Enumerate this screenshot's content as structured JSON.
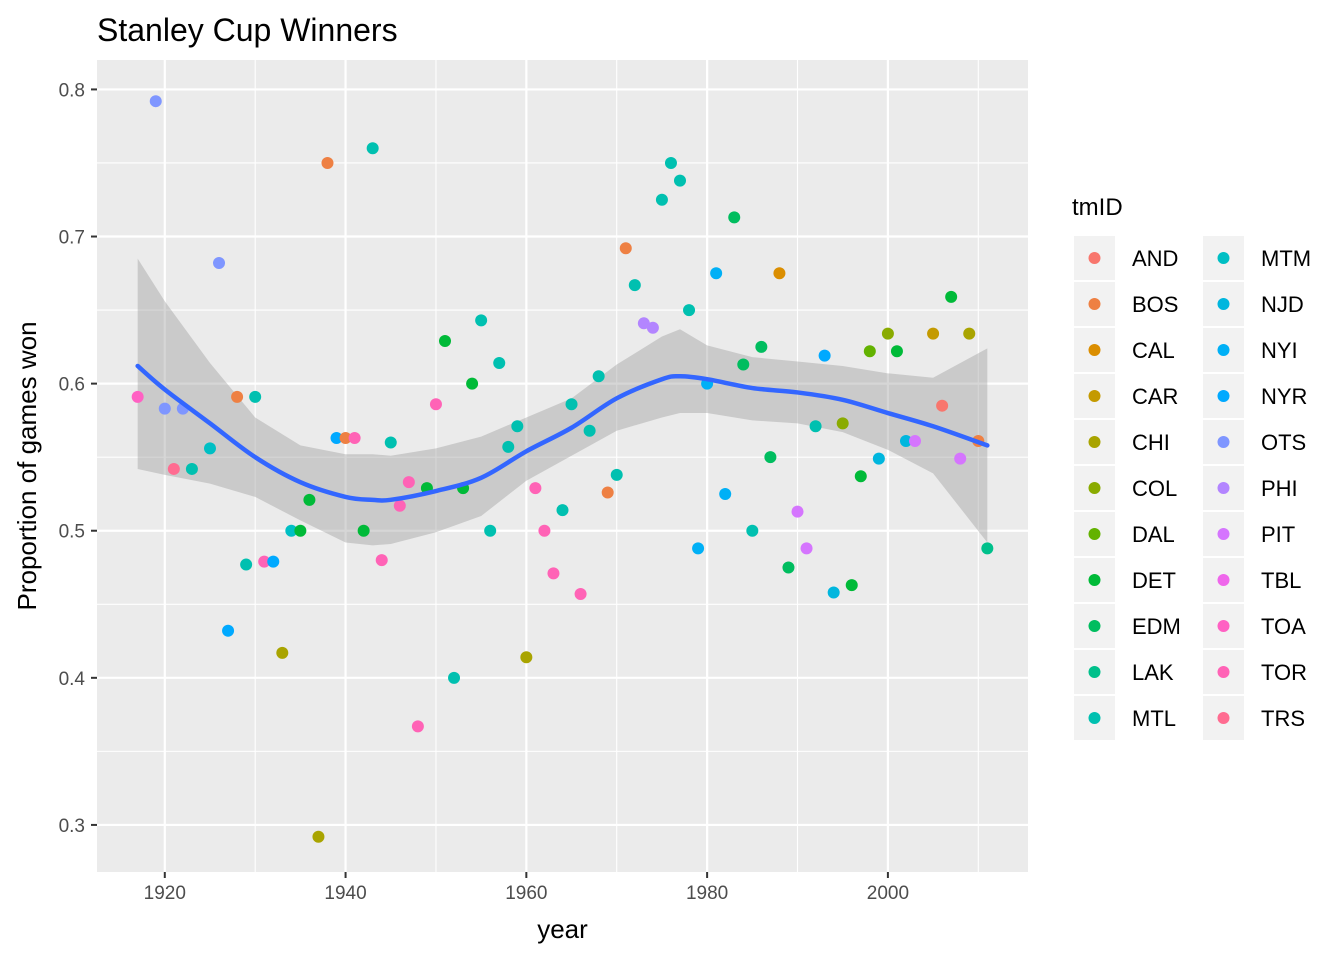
{
  "chart_data": {
    "type": "scatter",
    "title": "Stanley Cup Winners",
    "xlabel": "year",
    "ylabel": "Proportion of games won",
    "xlim": [
      1912.5,
      2015.5
    ],
    "ylim": [
      0.268,
      0.82
    ],
    "x_ticks": [
      1920,
      1940,
      1960,
      1980,
      2000
    ],
    "y_ticks": [
      0.3,
      0.4,
      0.5,
      0.6,
      0.7,
      0.8
    ],
    "grid": true,
    "legend": {
      "title": "tmID",
      "placement": "right",
      "entries": [
        {
          "name": "AND",
          "color": "#F8766D"
        },
        {
          "name": "BOS",
          "color": "#EE8043"
        },
        {
          "name": "CAL",
          "color": "#DB8E00"
        },
        {
          "name": "CAR",
          "color": "#C49A00"
        },
        {
          "name": "CHI",
          "color": "#A9A400"
        },
        {
          "name": "COL",
          "color": "#8AAB00"
        },
        {
          "name": "DAL",
          "color": "#63B200"
        },
        {
          "name": "DET",
          "color": "#00BA38"
        },
        {
          "name": "EDM",
          "color": "#00BD5F"
        },
        {
          "name": "LAK",
          "color": "#00C08B"
        },
        {
          "name": "MTL",
          "color": "#00C0B0"
        },
        {
          "name": "MTM",
          "color": "#00BFC4"
        },
        {
          "name": "NJD",
          "color": "#00B6DE"
        },
        {
          "name": "NYI",
          "color": "#00B0F6"
        },
        {
          "name": "NYR",
          "color": "#00A9FF"
        },
        {
          "name": "OTS",
          "color": "#7F96FF"
        },
        {
          "name": "PHI",
          "color": "#B385FF"
        },
        {
          "name": "PIT",
          "color": "#D575FE"
        },
        {
          "name": "TBL",
          "color": "#EF67EB"
        },
        {
          "name": "TOA",
          "color": "#FF61C3"
        },
        {
          "name": "TOR",
          "color": "#FF63B6"
        },
        {
          "name": "TRS",
          "color": "#FF6C91"
        }
      ]
    },
    "points": [
      {
        "x": 1917,
        "y": 0.591,
        "team": "TOA"
      },
      {
        "x": 1919,
        "y": 0.792,
        "team": "OTS"
      },
      {
        "x": 1920,
        "y": 0.583,
        "team": "OTS"
      },
      {
        "x": 1921,
        "y": 0.542,
        "team": "TRS"
      },
      {
        "x": 1922,
        "y": 0.583,
        "team": "OTS"
      },
      {
        "x": 1923,
        "y": 0.542,
        "team": "MTL"
      },
      {
        "x": 1925,
        "y": 0.556,
        "team": "MTM"
      },
      {
        "x": 1926,
        "y": 0.682,
        "team": "OTS"
      },
      {
        "x": 1927,
        "y": 0.432,
        "team": "NYR"
      },
      {
        "x": 1928,
        "y": 0.591,
        "team": "BOS"
      },
      {
        "x": 1929,
        "y": 0.477,
        "team": "MTL"
      },
      {
        "x": 1930,
        "y": 0.591,
        "team": "MTL"
      },
      {
        "x": 1931,
        "y": 0.479,
        "team": "TOR"
      },
      {
        "x": 1932,
        "y": 0.479,
        "team": "NYR"
      },
      {
        "x": 1933,
        "y": 0.417,
        "team": "CHI"
      },
      {
        "x": 1934,
        "y": 0.5,
        "team": "MTM"
      },
      {
        "x": 1935,
        "y": 0.5,
        "team": "DET"
      },
      {
        "x": 1936,
        "y": 0.521,
        "team": "DET"
      },
      {
        "x": 1937,
        "y": 0.292,
        "team": "CHI"
      },
      {
        "x": 1938,
        "y": 0.75,
        "team": "BOS"
      },
      {
        "x": 1939,
        "y": 0.563,
        "team": "NYR"
      },
      {
        "x": 1940,
        "y": 0.563,
        "team": "BOS"
      },
      {
        "x": 1941,
        "y": 0.563,
        "team": "TOR"
      },
      {
        "x": 1942,
        "y": 0.5,
        "team": "DET"
      },
      {
        "x": 1943,
        "y": 0.76,
        "team": "MTL"
      },
      {
        "x": 1944,
        "y": 0.48,
        "team": "TOR"
      },
      {
        "x": 1945,
        "y": 0.56,
        "team": "MTL"
      },
      {
        "x": 1946,
        "y": 0.517,
        "team": "TOR"
      },
      {
        "x": 1947,
        "y": 0.533,
        "team": "TOR"
      },
      {
        "x": 1948,
        "y": 0.367,
        "team": "TOR"
      },
      {
        "x": 1949,
        "y": 0.529,
        "team": "DET"
      },
      {
        "x": 1950,
        "y": 0.586,
        "team": "TOR"
      },
      {
        "x": 1951,
        "y": 0.629,
        "team": "DET"
      },
      {
        "x": 1952,
        "y": 0.4,
        "team": "MTL"
      },
      {
        "x": 1953,
        "y": 0.529,
        "team": "DET"
      },
      {
        "x": 1954,
        "y": 0.6,
        "team": "DET"
      },
      {
        "x": 1955,
        "y": 0.643,
        "team": "MTL"
      },
      {
        "x": 1956,
        "y": 0.5,
        "team": "MTL"
      },
      {
        "x": 1957,
        "y": 0.614,
        "team": "MTL"
      },
      {
        "x": 1958,
        "y": 0.557,
        "team": "MTL"
      },
      {
        "x": 1959,
        "y": 0.571,
        "team": "MTL"
      },
      {
        "x": 1960,
        "y": 0.414,
        "team": "CHI"
      },
      {
        "x": 1961,
        "y": 0.529,
        "team": "TOR"
      },
      {
        "x": 1962,
        "y": 0.5,
        "team": "TOR"
      },
      {
        "x": 1963,
        "y": 0.471,
        "team": "TOR"
      },
      {
        "x": 1964,
        "y": 0.514,
        "team": "MTL"
      },
      {
        "x": 1965,
        "y": 0.586,
        "team": "MTL"
      },
      {
        "x": 1966,
        "y": 0.457,
        "team": "TOR"
      },
      {
        "x": 1967,
        "y": 0.568,
        "team": "MTL"
      },
      {
        "x": 1968,
        "y": 0.605,
        "team": "MTL"
      },
      {
        "x": 1969,
        "y": 0.526,
        "team": "BOS"
      },
      {
        "x": 1970,
        "y": 0.538,
        "team": "MTL"
      },
      {
        "x": 1971,
        "y": 0.692,
        "team": "BOS"
      },
      {
        "x": 1972,
        "y": 0.667,
        "team": "MTL"
      },
      {
        "x": 1973,
        "y": 0.641,
        "team": "PHI"
      },
      {
        "x": 1974,
        "y": 0.638,
        "team": "PHI"
      },
      {
        "x": 1975,
        "y": 0.725,
        "team": "MTL"
      },
      {
        "x": 1976,
        "y": 0.75,
        "team": "MTL"
      },
      {
        "x": 1977,
        "y": 0.738,
        "team": "MTL"
      },
      {
        "x": 1978,
        "y": 0.65,
        "team": "MTL"
      },
      {
        "x": 1979,
        "y": 0.488,
        "team": "NYI"
      },
      {
        "x": 1980,
        "y": 0.6,
        "team": "NYI"
      },
      {
        "x": 1981,
        "y": 0.675,
        "team": "NYI"
      },
      {
        "x": 1982,
        "y": 0.525,
        "team": "NYI"
      },
      {
        "x": 1983,
        "y": 0.713,
        "team": "EDM"
      },
      {
        "x": 1984,
        "y": 0.613,
        "team": "EDM"
      },
      {
        "x": 1985,
        "y": 0.5,
        "team": "MTL"
      },
      {
        "x": 1986,
        "y": 0.625,
        "team": "EDM"
      },
      {
        "x": 1987,
        "y": 0.55,
        "team": "EDM"
      },
      {
        "x": 1988,
        "y": 0.675,
        "team": "CAL"
      },
      {
        "x": 1989,
        "y": 0.475,
        "team": "EDM"
      },
      {
        "x": 1990,
        "y": 0.513,
        "team": "PIT"
      },
      {
        "x": 1991,
        "y": 0.488,
        "team": "PIT"
      },
      {
        "x": 1992,
        "y": 0.571,
        "team": "MTL"
      },
      {
        "x": 1993,
        "y": 0.619,
        "team": "NYR"
      },
      {
        "x": 1994,
        "y": 0.458,
        "team": "NJD"
      },
      {
        "x": 1995,
        "y": 0.573,
        "team": "COL"
      },
      {
        "x": 1996,
        "y": 0.463,
        "team": "DET"
      },
      {
        "x": 1997,
        "y": 0.537,
        "team": "DET"
      },
      {
        "x": 1998,
        "y": 0.622,
        "team": "DAL"
      },
      {
        "x": 1999,
        "y": 0.549,
        "team": "NJD"
      },
      {
        "x": 2000,
        "y": 0.634,
        "team": "COL"
      },
      {
        "x": 2001,
        "y": 0.622,
        "team": "DET"
      },
      {
        "x": 2002,
        "y": 0.561,
        "team": "NJD"
      },
      {
        "x": 2003,
        "y": 0.561,
        "team": "PIT"
      },
      {
        "x": 2005,
        "y": 0.634,
        "team": "CAR"
      },
      {
        "x": 2006,
        "y": 0.585,
        "team": "AND"
      },
      {
        "x": 2007,
        "y": 0.659,
        "team": "DET"
      },
      {
        "x": 2008,
        "y": 0.549,
        "team": "PIT"
      },
      {
        "x": 2009,
        "y": 0.634,
        "team": "CHI"
      },
      {
        "x": 2010,
        "y": 0.561,
        "team": "BOS"
      },
      {
        "x": 2011,
        "y": 0.488,
        "team": "LAK"
      }
    ],
    "smooth": {
      "method": "loess",
      "color": "#3366FF",
      "x": [
        1917,
        1920,
        1925,
        1930,
        1935,
        1940,
        1943,
        1945,
        1950,
        1955,
        1960,
        1965,
        1970,
        1975,
        1977,
        1980,
        1985,
        1990,
        1995,
        2000,
        2005,
        2011
      ],
      "y": [
        0.612,
        0.596,
        0.573,
        0.55,
        0.533,
        0.523,
        0.521,
        0.521,
        0.527,
        0.536,
        0.554,
        0.57,
        0.59,
        0.603,
        0.605,
        0.603,
        0.597,
        0.594,
        0.589,
        0.58,
        0.571,
        0.558
      ],
      "ymin": [
        0.542,
        0.538,
        0.532,
        0.523,
        0.507,
        0.492,
        0.49,
        0.491,
        0.499,
        0.51,
        0.534,
        0.551,
        0.568,
        0.577,
        0.58,
        0.58,
        0.575,
        0.573,
        0.567,
        0.555,
        0.539,
        0.492
      ],
      "ymax": [
        0.685,
        0.656,
        0.614,
        0.577,
        0.558,
        0.552,
        0.552,
        0.551,
        0.556,
        0.564,
        0.577,
        0.59,
        0.613,
        0.632,
        0.637,
        0.626,
        0.618,
        0.615,
        0.612,
        0.607,
        0.604,
        0.624
      ]
    }
  }
}
